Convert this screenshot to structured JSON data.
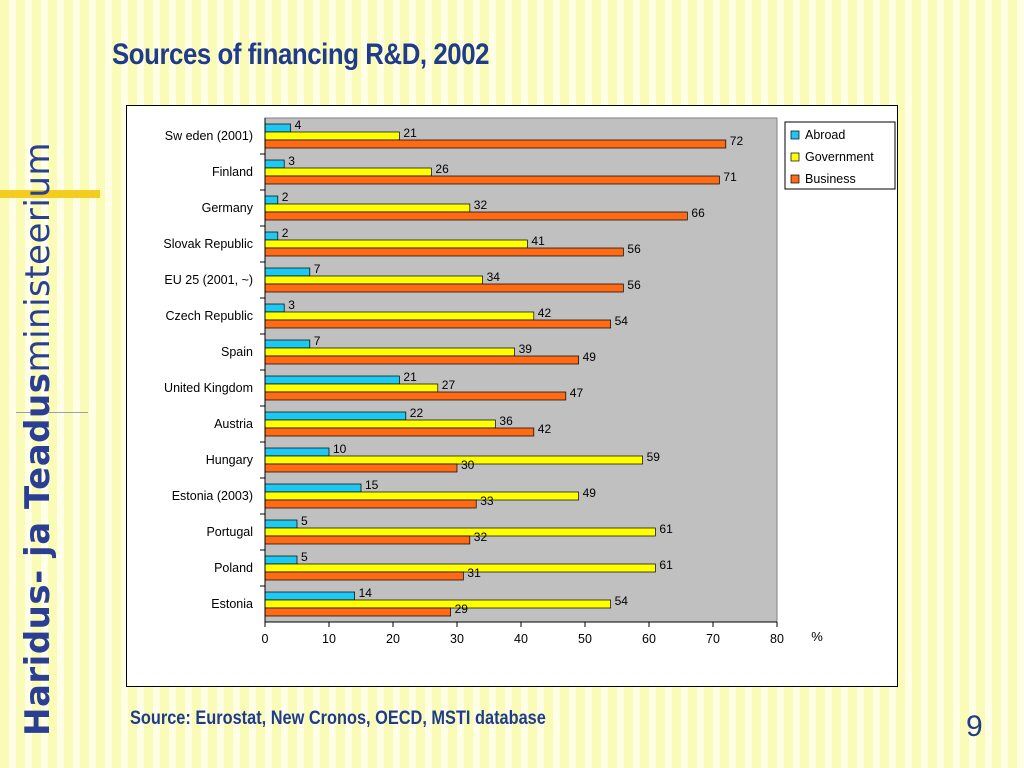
{
  "slide": {
    "title": "Sources of financing R&D, 2002",
    "ministry_bold": "Haridus- ja Teadus",
    "ministry_regular": "ministeerium",
    "source": "Source: Eurostat, New Cronos, OECD, MSTI database",
    "page_number": "9"
  },
  "chart_data": {
    "type": "bar",
    "orientation": "horizontal",
    "categories": [
      "Sw eden (2001)",
      "Finland",
      "Germany",
      "Slovak Republic",
      "EU 25 (2001, ~)",
      "Czech Republic",
      "Spain",
      "United Kingdom",
      "Austria",
      "Hungary",
      "Estonia (2003)",
      "Portugal",
      "Poland",
      "Estonia"
    ],
    "series": [
      {
        "name": "Abroad",
        "color": "#1ec8f0",
        "values": [
          4,
          3,
          2,
          2,
          7,
          3,
          7,
          21,
          22,
          10,
          15,
          5,
          5,
          14
        ]
      },
      {
        "name": "Government",
        "color": "#ffff00",
        "values": [
          21,
          26,
          32,
          41,
          34,
          42,
          39,
          27,
          36,
          59,
          49,
          61,
          61,
          54
        ]
      },
      {
        "name": "Business",
        "color": "#ff6a14",
        "values": [
          72,
          71,
          66,
          56,
          56,
          54,
          49,
          47,
          42,
          30,
          33,
          32,
          31,
          29
        ]
      }
    ],
    "xlim": [
      0,
      80
    ],
    "xticks": [
      0,
      10,
      20,
      30,
      40,
      50,
      60,
      70,
      80
    ],
    "xlabel": "%",
    "plot_background": "#c0c0c0",
    "legend_position": "top-right",
    "data_labels": true
  }
}
